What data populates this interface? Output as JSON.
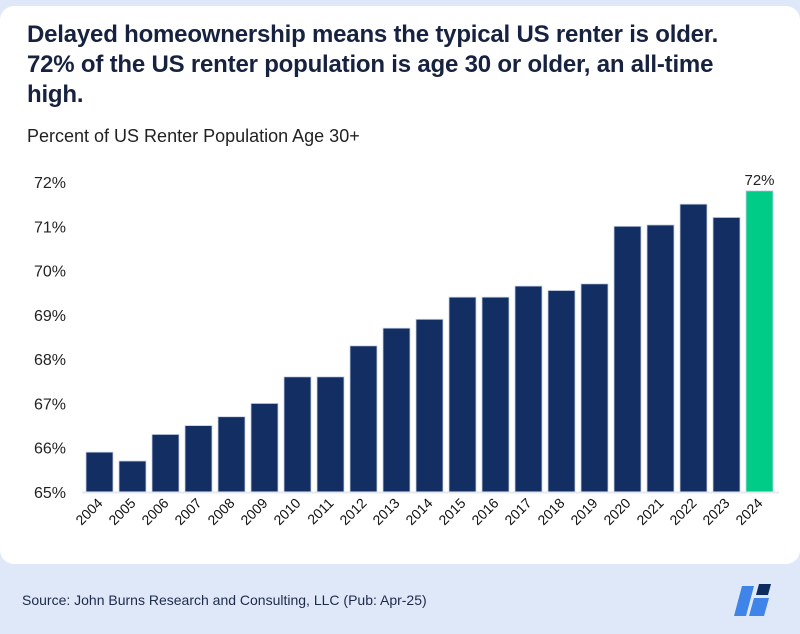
{
  "header": {
    "title": "Delayed homeownership means the typical US renter is older. 72% of the US renter population is age 30 or older, an all-time high.",
    "subtitle": "Percent of US Renter Population Age 30+"
  },
  "footer": {
    "source": "Source: John Burns Research and Consulting, LLC (Pub: Apr-25)",
    "logo_icon": "jbrec-logo-icon"
  },
  "colors": {
    "bar": "#132e63",
    "highlight": "#00cc88",
    "text": "#16223f"
  },
  "chart_data": {
    "type": "bar",
    "title": "Percent of US Renter Population Age 30+",
    "xlabel": "",
    "ylabel": "",
    "categories": [
      "2004",
      "2005",
      "2006",
      "2007",
      "2008",
      "2009",
      "2010",
      "2011",
      "2012",
      "2013",
      "2014",
      "2015",
      "2016",
      "2017",
      "2018",
      "2019",
      "2020",
      "2021",
      "2022",
      "2023",
      "2024"
    ],
    "values": [
      65.9,
      65.7,
      66.3,
      66.5,
      66.7,
      67.0,
      67.6,
      67.6,
      68.3,
      68.7,
      68.9,
      69.4,
      69.4,
      69.65,
      69.55,
      69.7,
      71.0,
      71.03,
      71.5,
      71.2,
      71.8
    ],
    "ylim": [
      65,
      72
    ],
    "yticks": [
      65,
      66,
      67,
      68,
      69,
      70,
      71,
      72
    ],
    "ytick_labels": [
      "65%",
      "66%",
      "67%",
      "68%",
      "69%",
      "70%",
      "71%",
      "72%"
    ],
    "highlight_index": 20,
    "data_labels": [
      {
        "index": 20,
        "text": "72%"
      }
    ],
    "grid": false,
    "legend": "none"
  }
}
